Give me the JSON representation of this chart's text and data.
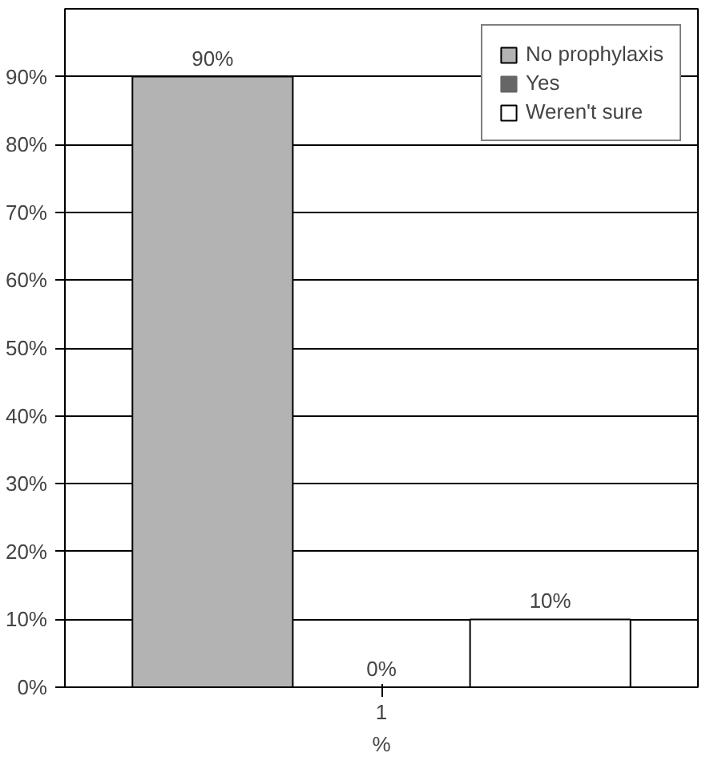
{
  "chart_data": {
    "type": "bar",
    "categories": [
      "1"
    ],
    "xlabel": "%",
    "series": [
      {
        "name": "No prophylaxis",
        "color": "#b3b3b3",
        "values": [
          90
        ],
        "value_labels": [
          "90%"
        ]
      },
      {
        "name": "Yes",
        "color": "#666666",
        "values": [
          0
        ],
        "value_labels": [
          "0%"
        ]
      },
      {
        "name": "Weren't sure",
        "color": "#ffffff",
        "values": [
          10
        ],
        "value_labels": [
          "10%"
        ]
      }
    ],
    "ylim": [
      0,
      100
    ],
    "yticks": [
      {
        "value": 0,
        "label": "0%"
      },
      {
        "value": 10,
        "label": "10%"
      },
      {
        "value": 20,
        "label": "20%"
      },
      {
        "value": 30,
        "label": "30%"
      },
      {
        "value": 40,
        "label": "40%"
      },
      {
        "value": 50,
        "label": "50%"
      },
      {
        "value": 60,
        "label": "60%"
      },
      {
        "value": 70,
        "label": "70%"
      },
      {
        "value": 80,
        "label": "80%"
      },
      {
        "value": 90,
        "label": "90%"
      }
    ],
    "grid": "y",
    "legend": "top right"
  }
}
